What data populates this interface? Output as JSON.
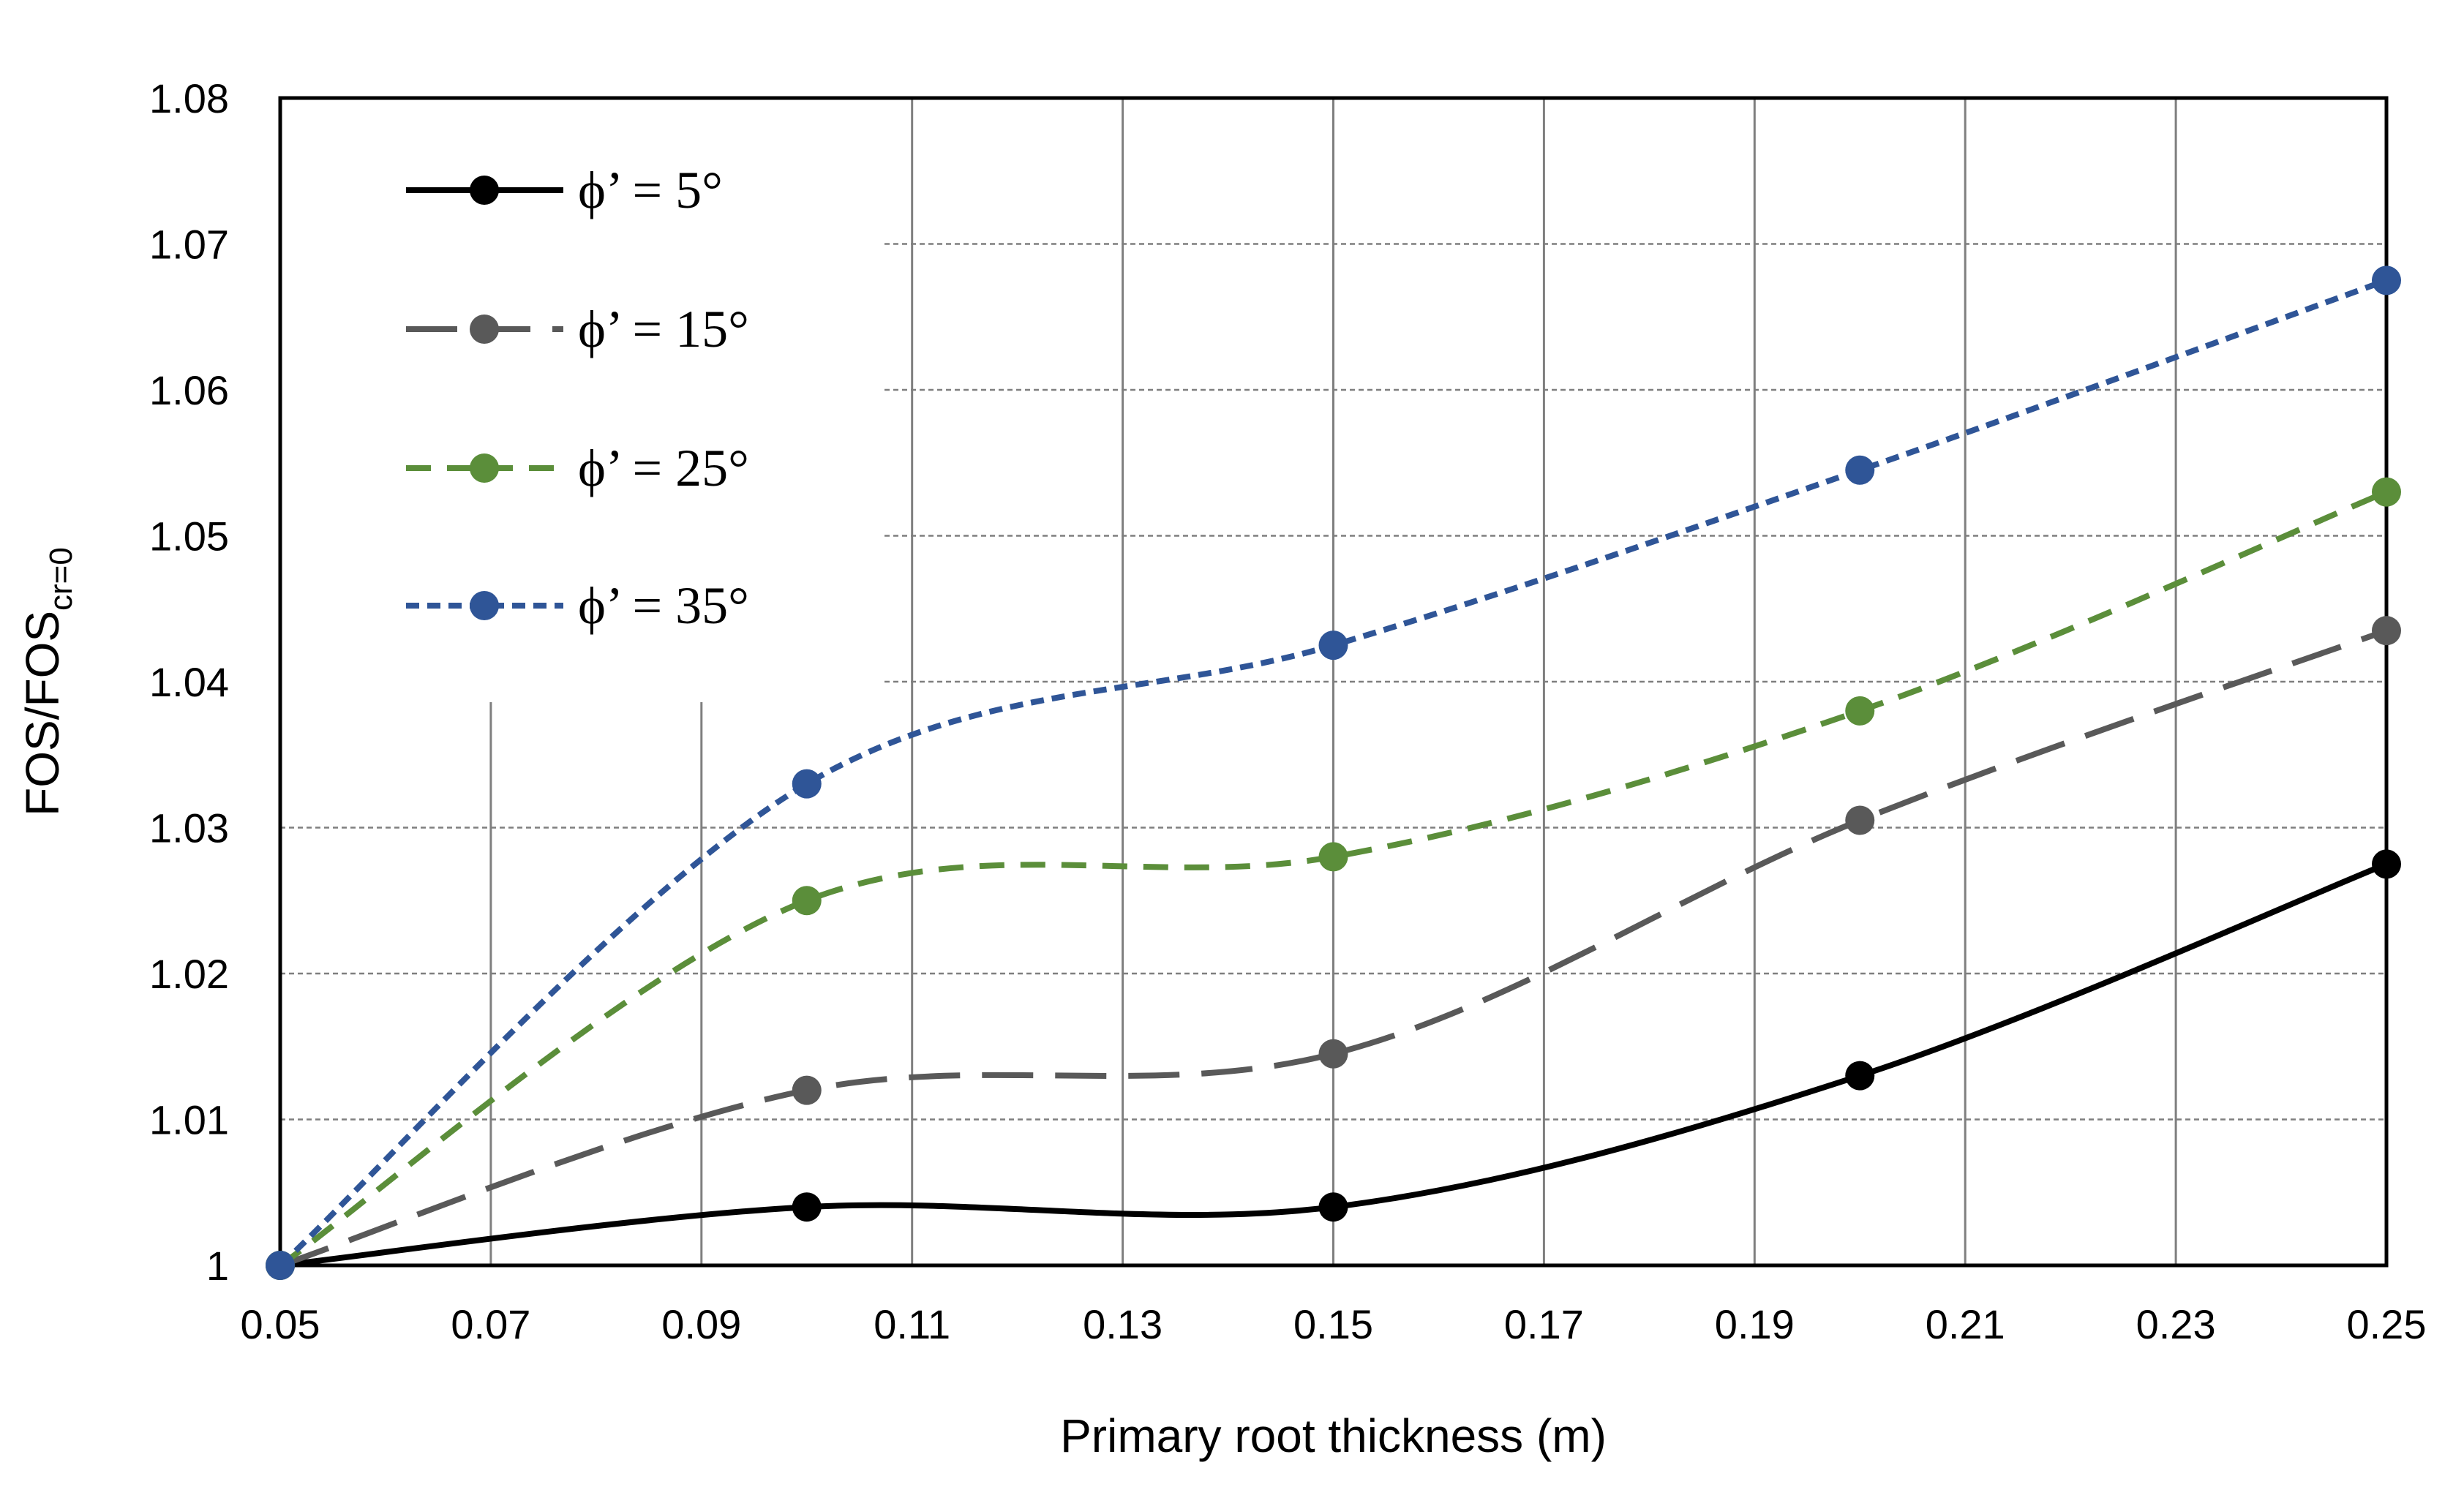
{
  "chart_data": {
    "type": "line",
    "title": "",
    "xlabel": "Primary root thickness (m)",
    "ylabel": {
      "main": "FOS/FOS",
      "sub": "cr=0"
    },
    "xlim": [
      0.05,
      0.25
    ],
    "ylim": [
      1.0,
      1.08
    ],
    "xticks": [
      "0.05",
      "0.07",
      "0.09",
      "0.11",
      "0.13",
      "0.15",
      "0.17",
      "0.19",
      "0.21",
      "0.23",
      "0.25"
    ],
    "yticks": [
      "1",
      "1.01",
      "1.02",
      "1.03",
      "1.04",
      "1.05",
      "1.06",
      "1.07",
      "1.08"
    ],
    "grid": true,
    "smooth": true,
    "legend_position": "top-left",
    "x": [
      0.05,
      0.1,
      0.15,
      0.2,
      0.25
    ],
    "series": [
      {
        "name": "ϕ’ = 5°",
        "color": "#000000",
        "dash": "solid",
        "values": [
          1.0,
          1.004,
          1.004,
          1.013,
          1.0275
        ]
      },
      {
        "name": "ϕ’ = 15°",
        "color": "#595959",
        "dash": "longdash",
        "values": [
          1.0,
          1.012,
          1.0145,
          1.0305,
          1.0435
        ]
      },
      {
        "name": "ϕ’ = 25°",
        "color": "#5B8E3A",
        "dash": "dash",
        "values": [
          1.0,
          1.025,
          1.028,
          1.038,
          1.053
        ]
      },
      {
        "name": "ϕ’ = 35°",
        "color": "#2F5597",
        "dash": "shortdash",
        "values": [
          1.0,
          1.033,
          1.0425,
          1.0545,
          1.0675
        ]
      }
    ]
  }
}
